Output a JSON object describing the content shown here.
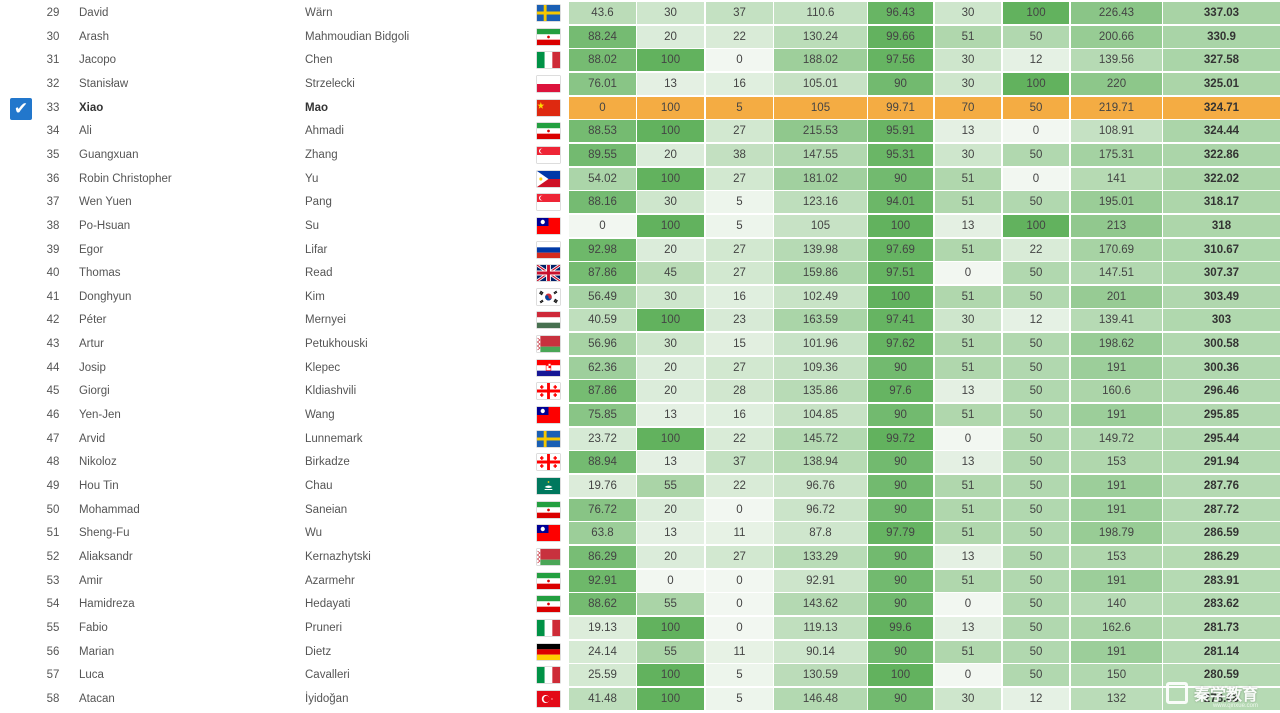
{
  "columns": [
    "rank",
    "first_name",
    "last_name",
    "country",
    "p1",
    "p2",
    "p3",
    "day1",
    "p4",
    "p5",
    "p6",
    "day2",
    "total"
  ],
  "column_max": [
    100,
    100,
    100,
    300,
    100,
    100,
    100,
    300,
    600
  ],
  "colors": {
    "highlight": "#f4ac43",
    "cell_min": "#f2f7f1",
    "cell_max": "#62b25e",
    "checkbox": "#2277cc"
  },
  "rows": [
    {
      "rank": "29",
      "first": "David",
      "last": "Wärn",
      "flag": "sweden",
      "scores": [
        "43.6",
        "30",
        "37",
        "110.6",
        "96.43",
        "30",
        "100",
        "226.43",
        "337.03"
      ],
      "selected": false
    },
    {
      "rank": "30",
      "first": "Arash",
      "last": "Mahmoudian Bidgoli",
      "flag": "iran",
      "scores": [
        "88.24",
        "20",
        "22",
        "130.24",
        "99.66",
        "51",
        "50",
        "200.66",
        "330.9"
      ],
      "selected": false
    },
    {
      "rank": "31",
      "first": "Jacopo",
      "last": "Chen",
      "flag": "italy",
      "scores": [
        "88.02",
        "100",
        "0",
        "188.02",
        "97.56",
        "30",
        "12",
        "139.56",
        "327.58"
      ],
      "selected": false
    },
    {
      "rank": "32",
      "first": "Stanisław",
      "last": "Strzelecki",
      "flag": "poland",
      "scores": [
        "76.01",
        "13",
        "16",
        "105.01",
        "90",
        "30",
        "100",
        "220",
        "325.01"
      ],
      "selected": false
    },
    {
      "rank": "33",
      "first": "Xiao",
      "last": "Mao",
      "flag": "china",
      "scores": [
        "0",
        "100",
        "5",
        "105",
        "99.71",
        "70",
        "50",
        "219.71",
        "324.71"
      ],
      "selected": true
    },
    {
      "rank": "34",
      "first": "Ali",
      "last": "Ahmadi",
      "flag": "iran",
      "scores": [
        "88.53",
        "100",
        "27",
        "215.53",
        "95.91",
        "13",
        "0",
        "108.91",
        "324.44"
      ],
      "selected": false
    },
    {
      "rank": "35",
      "first": "Guangxuan",
      "last": "Zhang",
      "flag": "singapore",
      "scores": [
        "89.55",
        "20",
        "38",
        "147.55",
        "95.31",
        "30",
        "50",
        "175.31",
        "322.86"
      ],
      "selected": false
    },
    {
      "rank": "36",
      "first": "Robin Christopher",
      "last": "Yu",
      "flag": "philippines",
      "scores": [
        "54.02",
        "100",
        "27",
        "181.02",
        "90",
        "51",
        "0",
        "141",
        "322.02"
      ],
      "selected": false
    },
    {
      "rank": "37",
      "first": "Wen Yuen",
      "last": "Pang",
      "flag": "singapore",
      "scores": [
        "88.16",
        "30",
        "5",
        "123.16",
        "94.01",
        "51",
        "50",
        "195.01",
        "318.17"
      ],
      "selected": false
    },
    {
      "rank": "38",
      "first": "Po-Hsuan",
      "last": "Su",
      "flag": "taiwan",
      "scores": [
        "0",
        "100",
        "5",
        "105",
        "100",
        "13",
        "100",
        "213",
        "318"
      ],
      "selected": false
    },
    {
      "rank": "39",
      "first": "Egor",
      "last": "Lifar",
      "flag": "russia",
      "scores": [
        "92.98",
        "20",
        "27",
        "139.98",
        "97.69",
        "51",
        "22",
        "170.69",
        "310.67"
      ],
      "selected": false
    },
    {
      "rank": "40",
      "first": "Thomas",
      "last": "Read",
      "flag": "uk",
      "scores": [
        "87.86",
        "45",
        "27",
        "159.86",
        "97.51",
        "0",
        "50",
        "147.51",
        "307.37"
      ],
      "selected": false
    },
    {
      "rank": "41",
      "first": "Donghyun",
      "last": "Kim",
      "flag": "korea",
      "scores": [
        "56.49",
        "30",
        "16",
        "102.49",
        "100",
        "51",
        "50",
        "201",
        "303.49"
      ],
      "selected": false
    },
    {
      "rank": "42",
      "first": "Péter",
      "last": "Mernyei",
      "flag": "hungary",
      "scores": [
        "40.59",
        "100",
        "23",
        "163.59",
        "97.41",
        "30",
        "12",
        "139.41",
        "303"
      ],
      "selected": false
    },
    {
      "rank": "43",
      "first": "Artur",
      "last": "Petukhouski",
      "flag": "belarus",
      "scores": [
        "56.96",
        "30",
        "15",
        "101.96",
        "97.62",
        "51",
        "50",
        "198.62",
        "300.58"
      ],
      "selected": false
    },
    {
      "rank": "44",
      "first": "Josip",
      "last": "Klepec",
      "flag": "croatia",
      "scores": [
        "62.36",
        "20",
        "27",
        "109.36",
        "90",
        "51",
        "50",
        "191",
        "300.36"
      ],
      "selected": false
    },
    {
      "rank": "45",
      "first": "Giorgi",
      "last": "Kldiashvili",
      "flag": "georgia",
      "scores": [
        "87.86",
        "20",
        "28",
        "135.86",
        "97.6",
        "13",
        "50",
        "160.6",
        "296.46"
      ],
      "selected": false
    },
    {
      "rank": "46",
      "first": "Yen-Jen",
      "last": "Wang",
      "flag": "taiwan",
      "scores": [
        "75.85",
        "13",
        "16",
        "104.85",
        "90",
        "51",
        "50",
        "191",
        "295.85"
      ],
      "selected": false
    },
    {
      "rank": "47",
      "first": "Arvid",
      "last": "Lunnemark",
      "flag": "sweden",
      "scores": [
        "23.72",
        "100",
        "22",
        "145.72",
        "99.72",
        "0",
        "50",
        "149.72",
        "295.44"
      ],
      "selected": false
    },
    {
      "rank": "48",
      "first": "Nikoloz",
      "last": "Birkadze",
      "flag": "georgia",
      "scores": [
        "88.94",
        "13",
        "37",
        "138.94",
        "90",
        "13",
        "50",
        "153",
        "291.94"
      ],
      "selected": false
    },
    {
      "rank": "49",
      "first": "Hou Tin",
      "last": "Chau",
      "flag": "macau",
      "scores": [
        "19.76",
        "55",
        "22",
        "96.76",
        "90",
        "51",
        "50",
        "191",
        "287.76"
      ],
      "selected": false
    },
    {
      "rank": "50",
      "first": "Mohammad",
      "last": "Saneian",
      "flag": "iran",
      "scores": [
        "76.72",
        "20",
        "0",
        "96.72",
        "90",
        "51",
        "50",
        "191",
        "287.72"
      ],
      "selected": false
    },
    {
      "rank": "51",
      "first": "Sheng-Fu",
      "last": "Wu",
      "flag": "taiwan",
      "scores": [
        "63.8",
        "13",
        "11",
        "87.8",
        "97.79",
        "51",
        "50",
        "198.79",
        "286.59"
      ],
      "selected": false
    },
    {
      "rank": "52",
      "first": "Aliaksandr",
      "last": "Kernazhytski",
      "flag": "belarus",
      "scores": [
        "86.29",
        "20",
        "27",
        "133.29",
        "90",
        "13",
        "50",
        "153",
        "286.29"
      ],
      "selected": false
    },
    {
      "rank": "53",
      "first": "Amir",
      "last": "Azarmehr",
      "flag": "iran",
      "scores": [
        "92.91",
        "0",
        "0",
        "92.91",
        "90",
        "51",
        "50",
        "191",
        "283.91"
      ],
      "selected": false
    },
    {
      "rank": "54",
      "first": "Hamidreza",
      "last": "Hedayati",
      "flag": "iran",
      "scores": [
        "88.62",
        "55",
        "0",
        "143.62",
        "90",
        "0",
        "50",
        "140",
        "283.62"
      ],
      "selected": false
    },
    {
      "rank": "55",
      "first": "Fabio",
      "last": "Pruneri",
      "flag": "italy",
      "scores": [
        "19.13",
        "100",
        "0",
        "119.13",
        "99.6",
        "13",
        "50",
        "162.6",
        "281.73"
      ],
      "selected": false
    },
    {
      "rank": "56",
      "first": "Marian",
      "last": "Dietz",
      "flag": "germany",
      "scores": [
        "24.14",
        "55",
        "11",
        "90.14",
        "90",
        "51",
        "50",
        "191",
        "281.14"
      ],
      "selected": false
    },
    {
      "rank": "57",
      "first": "Luca",
      "last": "Cavalleri",
      "flag": "italy",
      "scores": [
        "25.59",
        "100",
        "5",
        "130.59",
        "100",
        "0",
        "50",
        "150",
        "280.59"
      ],
      "selected": false
    },
    {
      "rank": "58",
      "first": "Atacan",
      "last": "İyidoğan",
      "flag": "turkey",
      "scores": [
        "41.48",
        "100",
        "5",
        "146.48",
        "90",
        "30",
        "12",
        "132",
        "278.48"
      ],
      "selected": false
    }
  ],
  "watermark": {
    "text": "秦学教育",
    "sub": "www.qinxue.com"
  }
}
